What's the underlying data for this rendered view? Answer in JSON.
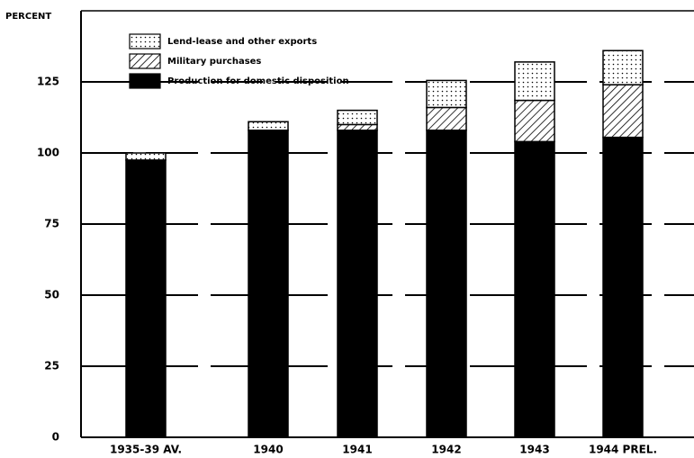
{
  "chart_data": {
    "type": "stacked_bar",
    "y_label": "PERCENT",
    "categories": [
      "1935-39 AV.",
      "1940",
      "1941",
      "1942",
      "1943",
      "1944 PREL."
    ],
    "series": [
      {
        "name": "Production for domestic disposition",
        "color": "#000000",
        "pattern": "solid",
        "values": [
          97.5,
          108,
          108,
          108,
          104,
          105.5
        ]
      },
      {
        "name": "Military purchases",
        "color": "#000000",
        "pattern": "hatch",
        "values": [
          0,
          0,
          2,
          8,
          14.5,
          18.5
        ]
      },
      {
        "name": "Lend-lease and other exports",
        "color": "#000000",
        "pattern": "dots",
        "values": [
          2.5,
          3,
          5,
          9.5,
          13.5,
          12
        ]
      }
    ],
    "ylim": [
      0,
      150
    ],
    "yticks": [
      0,
      25,
      50,
      75,
      100,
      125
    ],
    "grid": true
  }
}
